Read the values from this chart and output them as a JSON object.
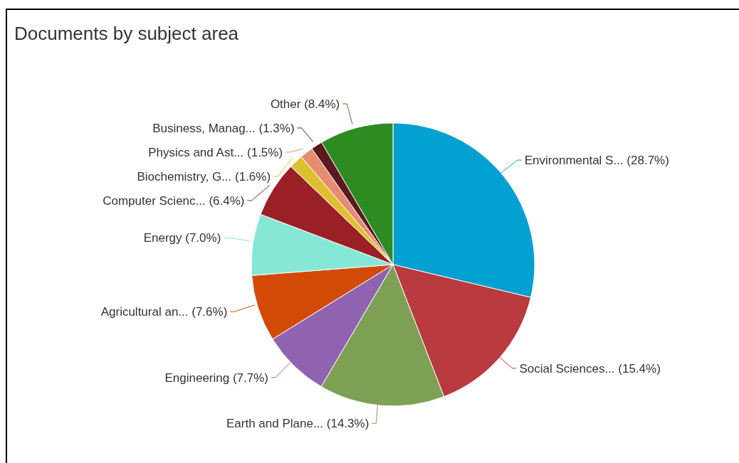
{
  "chart_data": {
    "type": "pie",
    "title": "Documents by subject area",
    "categories": [
      "Environmental S...",
      "Social Sciences...",
      "Earth and Plane...",
      "Engineering",
      "Agricultural an...",
      "Energy",
      "Computer Scienc...",
      "Biochemistry, G...",
      "Physics and Ast...",
      "Business, Manag...",
      "Other"
    ],
    "values": [
      28.7,
      15.4,
      14.3,
      7.7,
      7.6,
      7.0,
      6.4,
      1.6,
      1.5,
      1.3,
      8.4
    ],
    "value_labels": [
      "(28.7%)",
      "(15.4%)",
      "(14.3%)",
      "(7.7%)",
      "(7.6%)",
      "(7.0%)",
      "(6.4%)",
      "(1.6%)",
      "(1.5%)",
      "(1.3%)",
      "(8.4%)"
    ],
    "colors": [
      "#00a0d0",
      "#b93a3f",
      "#7ea055",
      "#8f63b0",
      "#d24a05",
      "#86e8d4",
      "#9b1f26",
      "#dcc032",
      "#e58d70",
      "#5a1a20",
      "#2d8b22"
    ]
  }
}
